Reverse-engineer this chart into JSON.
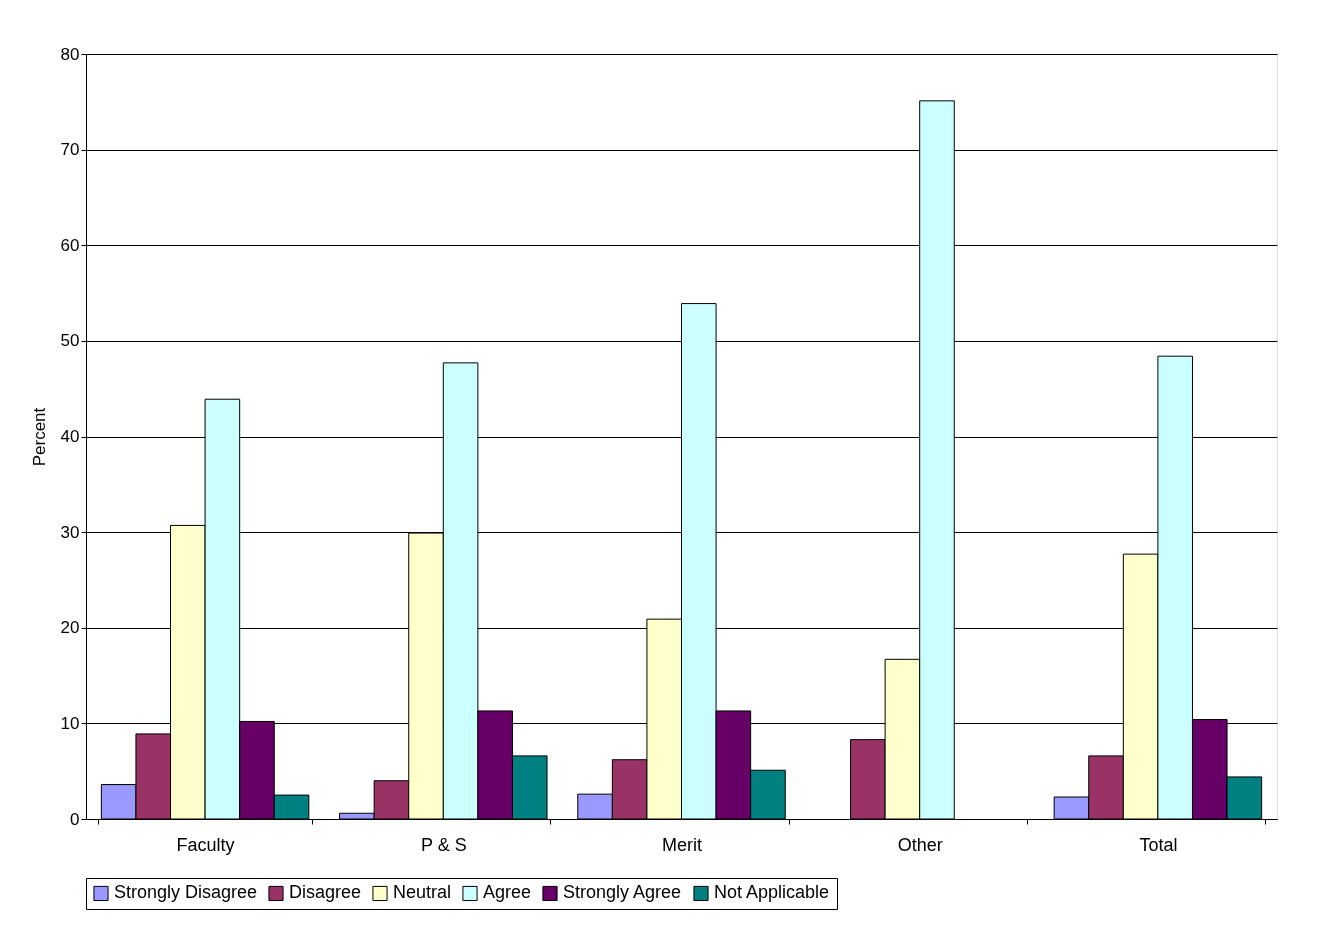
{
  "chart_data": {
    "type": "bar",
    "ylabel": "Percent",
    "categories": [
      "Faculty",
      "P & S",
      "Merit",
      "Other",
      "Total"
    ],
    "series": [
      {
        "name": "Strongly Disagree",
        "color": "#9999ff",
        "values": [
          3.6,
          0.6,
          2.6,
          null,
          2.3
        ]
      },
      {
        "name": "Disagree",
        "color": "#993366",
        "values": [
          8.9,
          4.0,
          6.2,
          8.3,
          6.6
        ]
      },
      {
        "name": "Neutral",
        "color": "#ffffcc",
        "values": [
          30.7,
          29.9,
          20.9,
          16.7,
          27.7
        ]
      },
      {
        "name": "Agree",
        "color": "#ccffff",
        "values": [
          43.9,
          47.7,
          53.9,
          75.1,
          48.4
        ]
      },
      {
        "name": "Strongly Agree",
        "color": "#660066",
        "values": [
          10.2,
          11.3,
          11.3,
          null,
          10.4
        ]
      },
      {
        "name": "Not Applicable",
        "color": "#008080",
        "values": [
          2.5,
          6.6,
          5.1,
          null,
          4.4
        ]
      }
    ],
    "ylim": [
      0,
      80
    ],
    "yticks": [
      0,
      10,
      20,
      30,
      40,
      50,
      60,
      70,
      80
    ],
    "grid": "y",
    "legend": "bottom"
  }
}
